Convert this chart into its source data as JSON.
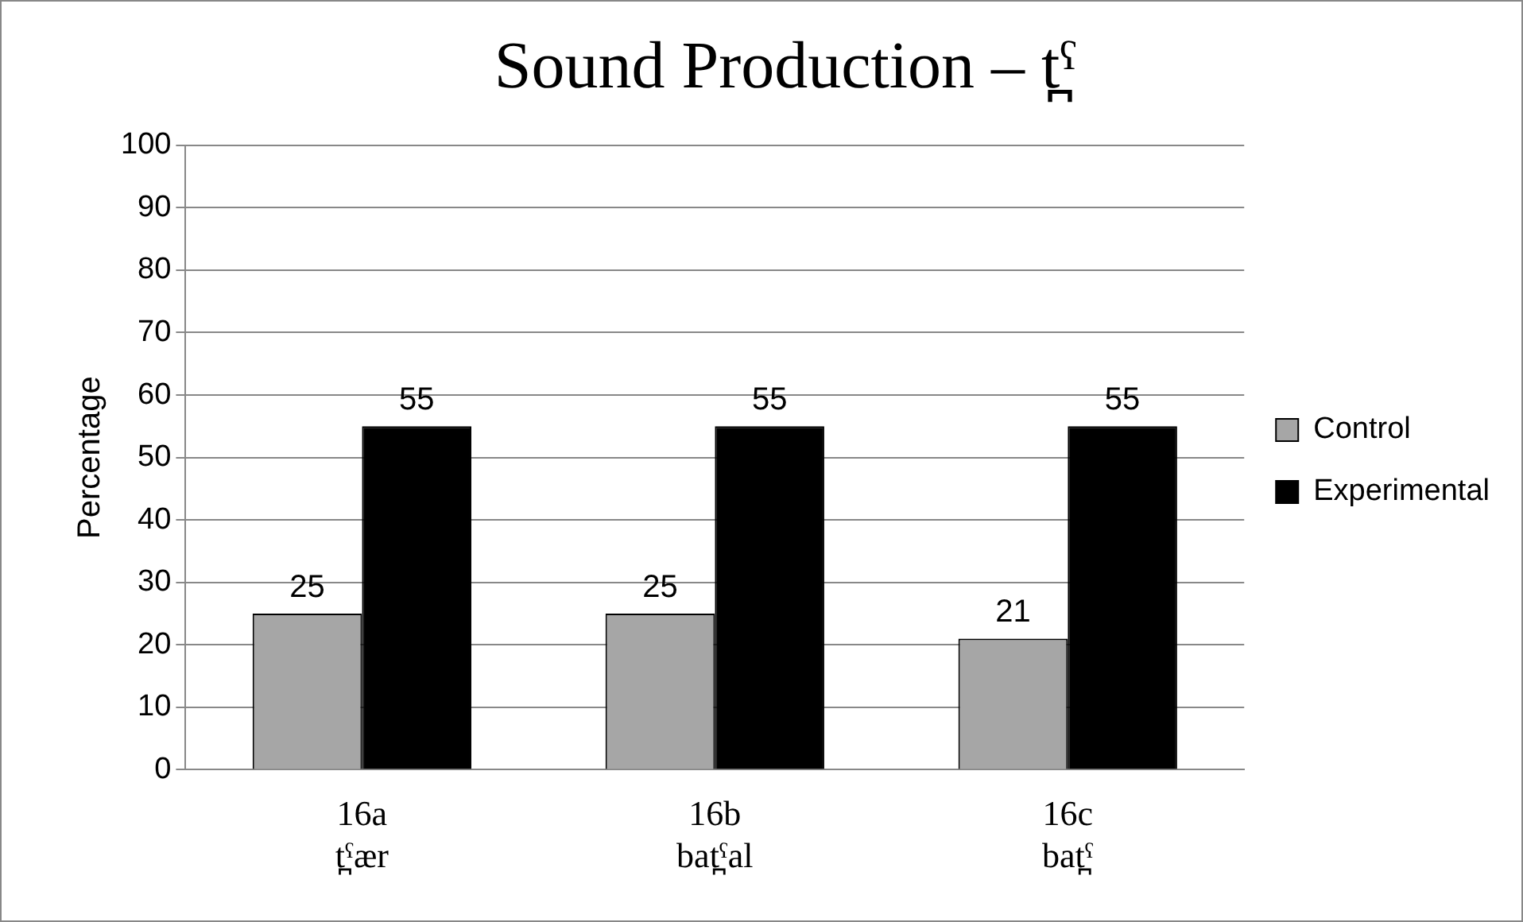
{
  "chart_data": {
    "type": "bar",
    "title": "Sound Production – t̪ˤ",
    "ylabel": "Percentage",
    "categories": [
      "16a\nt̪ˤær",
      "16b\nbat̪ˤal",
      "16c\nbat̪ˤ"
    ],
    "series": [
      {
        "name": "Control",
        "color": "#a6a6a6",
        "values": [
          25,
          25,
          21
        ]
      },
      {
        "name": "Experimental",
        "color": "#000000",
        "values": [
          55,
          55,
          55
        ]
      }
    ],
    "ylim": [
      0,
      100
    ],
    "yticks": [
      0,
      10,
      20,
      30,
      40,
      50,
      60,
      70,
      80,
      90,
      100
    ],
    "grid": "y",
    "legend": "right",
    "data_labels": true
  }
}
